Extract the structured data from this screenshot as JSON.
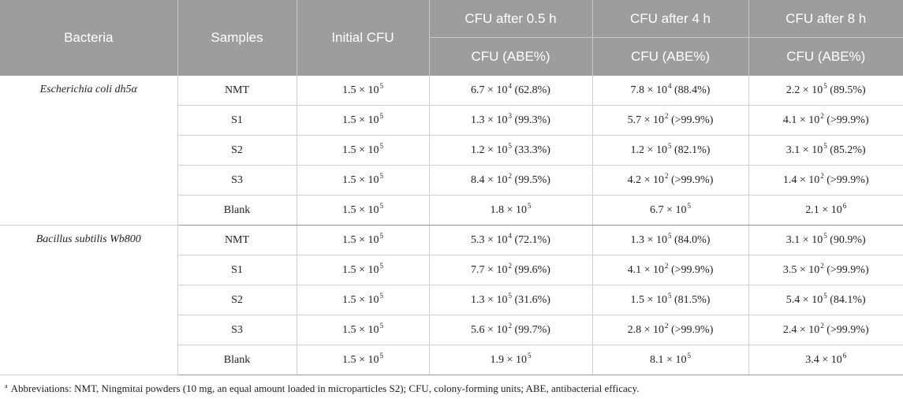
{
  "header": {
    "bacteria": "Bacteria",
    "samples": "Samples",
    "initial_cfu": "Initial CFU",
    "cfu_05h": "CFU after 0.5 h",
    "cfu_4h": "CFU after 4 h",
    "cfu_8h": "CFU after 8 h",
    "sub_label": "CFU (ABE%)"
  },
  "groups": [
    {
      "name": "Escherichia coli dh5α",
      "rows": [
        {
          "sample": "NMT",
          "initial": {
            "m": "1.5 × 10",
            "e": "5"
          },
          "h05": {
            "m": "6.7 × 10",
            "e": "4",
            "a": " (62.8%)"
          },
          "h4": {
            "m": "7.8 × 10",
            "e": "4",
            "a": " (88.4%)"
          },
          "h8": {
            "m": "2.2 × 10",
            "e": "5",
            "a": " (89.5%)"
          }
        },
        {
          "sample": "S1",
          "initial": {
            "m": "1.5 × 10",
            "e": "5"
          },
          "h05": {
            "m": "1.3 × 10",
            "e": "3",
            "a": " (99.3%)"
          },
          "h4": {
            "m": "5.7 × 10",
            "e": "2",
            "a": " (>99.9%)"
          },
          "h8": {
            "m": "4.1 × 10",
            "e": "2",
            "a": " (>99.9%)"
          }
        },
        {
          "sample": "S2",
          "initial": {
            "m": "1.5 × 10",
            "e": "5"
          },
          "h05": {
            "m": "1.2 × 10",
            "e": "5",
            "a": " (33.3%)"
          },
          "h4": {
            "m": "1.2 × 10",
            "e": "5",
            "a": " (82.1%)"
          },
          "h8": {
            "m": "3.1 × 10",
            "e": "5",
            "a": " (85.2%)"
          }
        },
        {
          "sample": "S3",
          "initial": {
            "m": "1.5 × 10",
            "e": "5"
          },
          "h05": {
            "m": "8.4 × 10",
            "e": "2",
            "a": " (99.5%)"
          },
          "h4": {
            "m": "4.2 × 10",
            "e": "2",
            "a": " (>99.9%)"
          },
          "h8": {
            "m": "1.4 × 10",
            "e": "2",
            "a": " (>99.9%)"
          }
        },
        {
          "sample": "Blank",
          "initial": {
            "m": "1.5 × 10",
            "e": "5"
          },
          "h05": {
            "m": "1.8 × 10",
            "e": "5",
            "a": ""
          },
          "h4": {
            "m": "6.7 × 10",
            "e": "5",
            "a": ""
          },
          "h8": {
            "m": "2.1 × 10",
            "e": "6",
            "a": ""
          }
        }
      ]
    },
    {
      "name": "Bacillus subtilis Wb800",
      "rows": [
        {
          "sample": "NMT",
          "initial": {
            "m": "1.5 × 10",
            "e": "5"
          },
          "h05": {
            "m": "5.3 × 10",
            "e": "4",
            "a": " (72.1%)"
          },
          "h4": {
            "m": "1.3 × 10",
            "e": "5",
            "a": " (84.0%)"
          },
          "h8": {
            "m": "3.1 × 10",
            "e": "5",
            "a": " (90.9%)"
          }
        },
        {
          "sample": "S1",
          "initial": {
            "m": "1.5 × 10",
            "e": "5"
          },
          "h05": {
            "m": "7.7 × 10",
            "e": "2",
            "a": " (99.6%)"
          },
          "h4": {
            "m": "4.1 × 10",
            "e": "2",
            "a": " (>99.9%)"
          },
          "h8": {
            "m": "3.5 × 10",
            "e": "2",
            "a": " (>99.9%)"
          }
        },
        {
          "sample": "S2",
          "initial": {
            "m": "1.5 × 10",
            "e": "5"
          },
          "h05": {
            "m": "1.3 × 10",
            "e": "5",
            "a": " (31.6%)"
          },
          "h4": {
            "m": "1.5 × 10",
            "e": "5",
            "a": " (81.5%)"
          },
          "h8": {
            "m": "5.4 × 10",
            "e": "5",
            "a": " (84.1%)"
          }
        },
        {
          "sample": "S3",
          "initial": {
            "m": "1.5 × 10",
            "e": "5"
          },
          "h05": {
            "m": "5.6 × 10",
            "e": "2",
            "a": " (99.7%)"
          },
          "h4": {
            "m": "2.8 × 10",
            "e": "2",
            "a": " (>99.9%)"
          },
          "h8": {
            "m": "2.4 × 10",
            "e": "2",
            "a": " (>99.9%)"
          }
        },
        {
          "sample": "Blank",
          "initial": {
            "m": "1.5 × 10",
            "e": "5"
          },
          "h05": {
            "m": "1.9 × 10",
            "e": "5",
            "a": ""
          },
          "h4": {
            "m": "8.1 × 10",
            "e": "5",
            "a": ""
          },
          "h8": {
            "m": "3.4 × 10",
            "e": "6",
            "a": ""
          }
        }
      ]
    }
  ],
  "footnote": {
    "marker": "a",
    "text": "Abbreviations: NMT, Ningmitai powders (10 mg, an equal amount loaded in microparticles S2); CFU, colony-forming units; ABE, antibacterial efficacy."
  }
}
